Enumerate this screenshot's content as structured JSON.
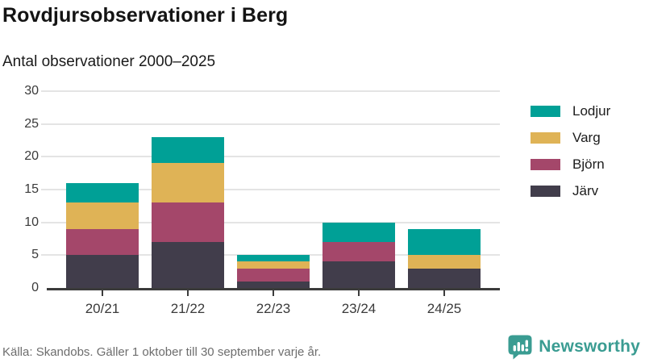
{
  "header": {
    "title": "Rovdjursobservationer i Berg",
    "subtitle": "Antal observationer 2000–2025"
  },
  "chart_data": {
    "type": "bar",
    "stacked": true,
    "title": "Rovdjursobservationer i Berg",
    "subtitle": "Antal observationer 2000–2025",
    "categories": [
      "20/21",
      "21/22",
      "22/23",
      "23/24",
      "24/25"
    ],
    "series": [
      {
        "name": "Järv",
        "color": "#413d4b",
        "values": [
          5,
          7,
          1,
          4,
          3
        ]
      },
      {
        "name": "Björn",
        "color": "#a4476a",
        "values": [
          4,
          6,
          2,
          3,
          0
        ]
      },
      {
        "name": "Varg",
        "color": "#dfb356",
        "values": [
          4,
          6,
          1,
          0,
          2
        ]
      },
      {
        "name": "Lodjur",
        "color": "#00a096",
        "values": [
          3,
          4,
          1,
          3,
          4
        ]
      }
    ],
    "stack_totals": [
      16,
      23,
      5,
      10,
      9
    ],
    "xlabel": "",
    "ylabel": "",
    "ylim": [
      0,
      30
    ],
    "yticks": [
      0,
      5,
      10,
      15,
      20,
      25,
      30
    ],
    "grid": "horizontal",
    "legend_position": "right",
    "legend_order": [
      "Lodjur",
      "Varg",
      "Björn",
      "Järv"
    ]
  },
  "footer": {
    "source": "Källa: Skandobs. Gäller 1 oktober till 30 september varje år.",
    "brand": "Newsworthy",
    "brand_color": "#3a9c92"
  }
}
